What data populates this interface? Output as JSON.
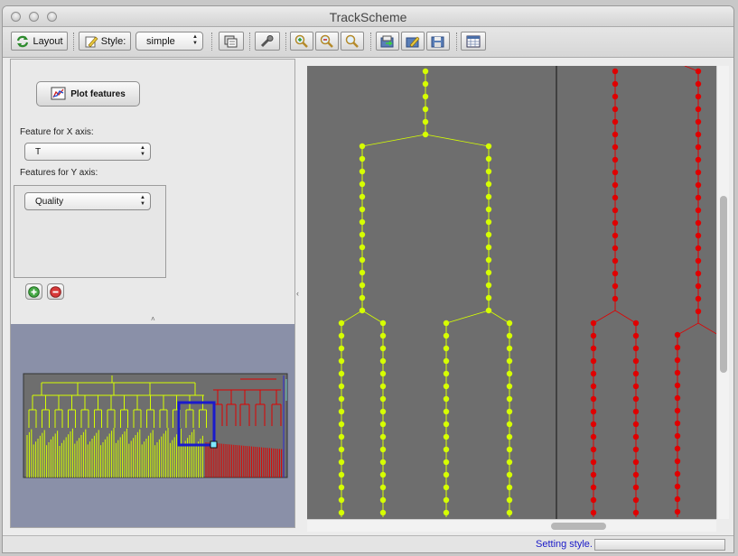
{
  "window": {
    "title": "TrackScheme"
  },
  "toolbar": {
    "layout_label": "Layout",
    "style_label": "Style:",
    "style_select": {
      "value": "simple"
    },
    "icons": [
      "refresh-icon",
      "style-icon",
      "copy-icon",
      "wrench-icon",
      "zoom-in-icon",
      "zoom-out-icon",
      "zoom-fit-icon",
      "export-icon",
      "edit-icon",
      "save-icon",
      "table-icon"
    ]
  },
  "left_panel": {
    "plot_button_label": "Plot features",
    "x_axis_label": "Feature for X axis:",
    "x_axis_value": "T",
    "y_axis_label": "Features for Y axis:",
    "y_axis_values": [
      "Quality"
    ],
    "add_icon": "plus-circle-icon",
    "remove_icon": "minus-circle-icon"
  },
  "colors": {
    "canvas_bg": "#6e6e6e",
    "track_yellow": "#d6ff00",
    "track_red": "#e00000",
    "overview_bg": "#8a90a8",
    "viewport_box": "#1a1acc",
    "status_text": "#1a1ac8"
  },
  "status": {
    "text": "Setting style."
  }
}
